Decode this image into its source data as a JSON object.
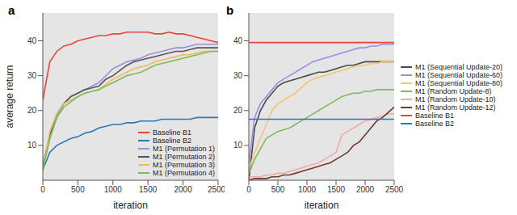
{
  "chart_data": [
    {
      "type": "line",
      "title": "a",
      "x_label": "iteration",
      "y_label": "average return",
      "x": [
        0,
        100,
        200,
        300,
        400,
        500,
        600,
        700,
        800,
        900,
        1000,
        1100,
        1200,
        1300,
        1400,
        1500,
        1600,
        1700,
        1800,
        1900,
        2000,
        2100,
        2200,
        2300,
        2400,
        2500
      ],
      "xlim": [
        0,
        2500
      ],
      "xticks": [
        0,
        500,
        1000,
        1500,
        2000,
        2500
      ],
      "ylim": [
        0,
        48
      ],
      "yticks": [
        10,
        20,
        30,
        40
      ],
      "grid": false,
      "legend": "lower right",
      "series": [
        {
          "name": "Baseline B1",
          "color": "#e8453c",
          "values": [
            23,
            34,
            37,
            38.5,
            39,
            40,
            40.5,
            41,
            41.5,
            41.5,
            42,
            42,
            42.5,
            42.5,
            42.5,
            42.5,
            42,
            42,
            42.5,
            42,
            42,
            41.5,
            41,
            40.5,
            40,
            39.5
          ]
        },
        {
          "name": "Baseline B2",
          "color": "#2a7ab8",
          "values": [
            3,
            8,
            10,
            11,
            12,
            12.5,
            13.5,
            14,
            15,
            15.5,
            16,
            16,
            16.5,
            16.5,
            17,
            17,
            17,
            17.5,
            17.5,
            17.5,
            17.5,
            17.5,
            18,
            18,
            18,
            18
          ]
        },
        {
          "name": "M1 (Permutation 1)",
          "color": "#9a8fe0",
          "values": [
            4,
            12,
            18,
            22,
            24,
            25,
            26,
            27,
            28,
            30,
            32,
            33,
            34,
            34.5,
            35,
            36,
            36.5,
            37,
            37.5,
            38,
            38,
            38.5,
            39,
            39,
            39,
            39
          ]
        },
        {
          "name": "M1 (Permutation 2)",
          "color": "#555555",
          "values": [
            4,
            13,
            19,
            22,
            24,
            25,
            26,
            26.5,
            27,
            29,
            30,
            31.5,
            33,
            34,
            34.5,
            35,
            35.5,
            36,
            36.5,
            37,
            37,
            37.5,
            38,
            38,
            38,
            38
          ]
        },
        {
          "name": "M1 (Permutation 3)",
          "color": "#f0b95a",
          "values": [
            3,
            14,
            19,
            22,
            23,
            24,
            25,
            25.5,
            26,
            27.5,
            29,
            30,
            31,
            32,
            32.5,
            33,
            34,
            34.5,
            35,
            35.5,
            36,
            36,
            36.5,
            37,
            37,
            37
          ]
        },
        {
          "name": "M1 (Permutation 4)",
          "color": "#7dbb5c",
          "values": [
            3,
            12,
            18,
            21,
            22.5,
            24,
            25,
            25.5,
            26,
            27,
            28,
            29,
            30,
            30.5,
            31,
            32,
            33,
            33.5,
            34,
            34.5,
            35,
            35.5,
            36,
            36.5,
            37,
            37
          ]
        }
      ]
    },
    {
      "type": "line",
      "title": "b",
      "x_label": "iteration",
      "x": [
        0,
        100,
        200,
        300,
        400,
        500,
        600,
        700,
        800,
        900,
        1000,
        1100,
        1200,
        1300,
        1400,
        1500,
        1600,
        1700,
        1800,
        1900,
        2000,
        2100,
        2200,
        2300,
        2400,
        2500
      ],
      "xlim": [
        0,
        2500
      ],
      "xticks": [
        0,
        500,
        1000,
        1500,
        2000,
        2500
      ],
      "ylim": [
        0,
        48
      ],
      "yticks": [
        10,
        20,
        30,
        40
      ],
      "grid": false,
      "legend": "right",
      "series": [
        {
          "name": "M1 (Sequential Update-20)",
          "color": "#4a4a4a",
          "values": [
            0,
            15,
            20,
            23,
            25,
            27,
            28,
            28.5,
            29,
            29.5,
            30,
            30.5,
            31,
            31,
            31.5,
            32,
            32.5,
            33,
            33,
            33.5,
            34,
            34,
            34,
            34,
            34,
            34
          ]
        },
        {
          "name": "M1 (Sequential Update-60)",
          "color": "#9a8fe0",
          "values": [
            5,
            18,
            22,
            24,
            26,
            28,
            29,
            30,
            31,
            32,
            33,
            34,
            34.5,
            35,
            35.5,
            36,
            36.5,
            37,
            37.5,
            38,
            38,
            38.5,
            38.5,
            39,
            39,
            39
          ]
        },
        {
          "name": "M1 (Sequential Update-80)",
          "color": "#f2c66a",
          "values": [
            3,
            8,
            12,
            16,
            20,
            22,
            23,
            24,
            25,
            26.5,
            28,
            29,
            29.5,
            30,
            30.5,
            31,
            31.5,
            32,
            32.5,
            33,
            33,
            33.5,
            33.5,
            34,
            34,
            34
          ]
        },
        {
          "name": "M1 (Random Update-8)",
          "color": "#7dbb5c",
          "values": [
            2,
            6,
            9,
            12,
            13,
            14,
            14.5,
            15,
            16,
            17,
            18,
            19,
            20,
            21,
            22,
            23,
            24,
            24.5,
            25,
            25,
            25.5,
            25.5,
            26,
            26,
            26,
            26
          ]
        },
        {
          "name": "M1 (Random Update-10)",
          "color": "#f2aaa4",
          "values": [
            1,
            1,
            1,
            1.5,
            1.5,
            2,
            2,
            2.5,
            3,
            3.5,
            4,
            4.5,
            5,
            6,
            7,
            8,
            13,
            14,
            15,
            16,
            17,
            17.5,
            18,
            18.5,
            19,
            19
          ]
        },
        {
          "name": "M1 (Random Update-12)",
          "color": "#6e3b2a",
          "values": [
            0,
            0.5,
            0.5,
            0.5,
            1,
            1,
            1.5,
            1.5,
            2,
            2.5,
            3,
            3.5,
            4,
            4.5,
            5,
            6,
            7,
            8,
            10,
            11,
            13,
            15,
            17,
            18,
            19.5,
            21
          ]
        },
        {
          "name": "Baseline B1",
          "color": "#e8453c",
          "values": [
            39.5,
            39.5,
            39.5,
            39.5,
            39.5,
            39.5,
            39.5,
            39.5,
            39.5,
            39.5,
            39.5,
            39.5,
            39.5,
            39.5,
            39.5,
            39.5,
            39.5,
            39.5,
            39.5,
            39.5,
            39.5,
            39.5,
            39.5,
            39.5,
            39.5,
            39.5
          ]
        },
        {
          "name": "Baseline B2",
          "color": "#2a7ab8",
          "values": [
            17.5,
            17.5,
            17.5,
            17.5,
            17.5,
            17.5,
            17.5,
            17.5,
            17.5,
            17.5,
            17.5,
            17.5,
            17.5,
            17.5,
            17.5,
            17.5,
            17.5,
            17.5,
            17.5,
            17.5,
            17.5,
            17.5,
            17.5,
            17.5,
            17.5,
            17.5
          ]
        }
      ]
    }
  ]
}
